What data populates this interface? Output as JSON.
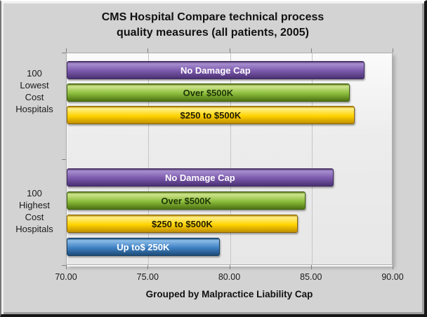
{
  "chart_data": {
    "type": "bar",
    "orientation": "horizontal",
    "title": "CMS Hospital Compare technical process quality measures (all patients, 2005)",
    "title_lines": [
      "CMS Hospital Compare technical process",
      "quality measures (all patients, 2005)"
    ],
    "xlabel": "Grouped by Malpractice Liability Cap",
    "ylabel": "",
    "xlim": [
      70,
      90
    ],
    "xticks": [
      "70.00",
      "75.00",
      "80.00",
      "85.00",
      "90.00"
    ],
    "grid": true,
    "legend": "none",
    "groups": [
      {
        "label": "100 Lowest Cost Hospitals",
        "label_lines": [
          "100",
          "Lowest",
          "Cost",
          "Hospitals"
        ],
        "bars": [
          {
            "label": "No Damage Cap",
            "value": 88.3,
            "color_key": "purple"
          },
          {
            "label": "Over $500K",
            "value": 87.4,
            "color_key": "green"
          },
          {
            "label": "$250 to $500K",
            "value": 87.7,
            "color_key": "yellow"
          }
        ]
      },
      {
        "label": "100 Highest Cost Hospitals",
        "label_lines": [
          "100",
          "Highest",
          "Cost",
          "Hospitals"
        ],
        "bars": [
          {
            "label": "No Damage Cap",
            "value": 86.4,
            "color_key": "purple"
          },
          {
            "label": "Over $500K",
            "value": 84.7,
            "color_key": "green"
          },
          {
            "label": "$250 to $500K",
            "value": 84.2,
            "color_key": "yellow"
          },
          {
            "label": "Up to$ 250K",
            "value": 79.4,
            "color_key": "blue"
          }
        ]
      }
    ],
    "colors": {
      "purple": {
        "edge": "#3f2a5e",
        "top": "#53396f",
        "light": "#a88fd0",
        "mid": "#7a58ab",
        "dark": "#4a3173",
        "text": "#ffffff"
      },
      "green": {
        "edge": "#3e5e0e",
        "top": "#5c7c1a",
        "light": "#cfe48e",
        "mid": "#8cbe3c",
        "dark": "#4e7413",
        "text": "#1e3307"
      },
      "yellow": {
        "edge": "#8a6400",
        "top": "#b78c00",
        "light": "#ffef8a",
        "mid": "#ffd400",
        "dark": "#c08f00",
        "text": "#201b00"
      },
      "blue": {
        "edge": "#173e62",
        "top": "#1d4c77",
        "light": "#8cbde8",
        "mid": "#3f82c4",
        "dark": "#1d4c77",
        "text": "#ffffff"
      }
    }
  }
}
